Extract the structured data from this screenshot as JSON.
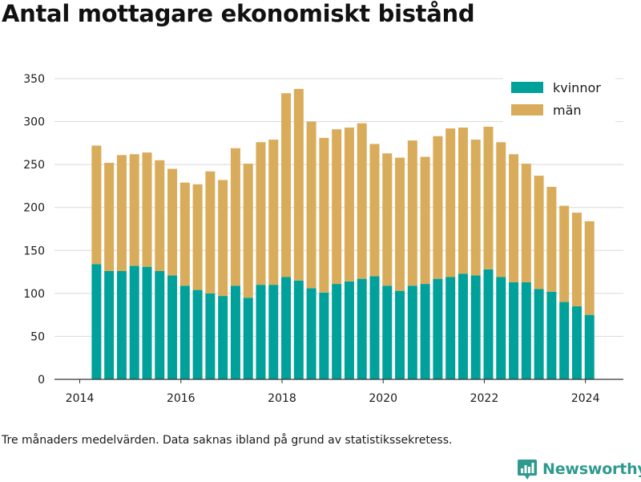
{
  "title": "Antal mottagare ekonomiskt bistånd",
  "footnote": "Tre månaders medelvärden. Data saknas ibland på grund av statistikssekretess.",
  "brand": {
    "name": "Newsworthy",
    "icon": "newsworthy-logo-icon",
    "color": "#2e9a8e"
  },
  "colors": {
    "kvinnor": "#00a19a",
    "man": "#d9ac5b",
    "grid": "#d9d9d9",
    "axis": "#333333"
  },
  "chart_data": {
    "type": "bar",
    "stacked": true,
    "title": "Antal mottagare ekonomiskt bistånd",
    "xlabel": "",
    "ylabel": "",
    "ylim": [
      0,
      350
    ],
    "yticks": [
      0,
      50,
      100,
      150,
      200,
      250,
      300,
      350
    ],
    "xlim": [
      2013.5,
      2024.75
    ],
    "xticks": [
      2014,
      2016,
      2018,
      2020,
      2022,
      2024
    ],
    "xtick_labels": [
      "2014",
      "2016",
      "2018",
      "2020",
      "2022",
      "2024"
    ],
    "grid": true,
    "legend": {
      "position": "top-right",
      "entries": [
        "kvinnor",
        "män"
      ]
    },
    "x": [
      2014.33,
      2014.58,
      2014.83,
      2015.08,
      2015.33,
      2015.58,
      2015.83,
      2016.08,
      2016.33,
      2016.58,
      2016.83,
      2017.08,
      2017.33,
      2017.58,
      2017.83,
      2018.08,
      2018.33,
      2018.58,
      2018.83,
      2019.08,
      2019.33,
      2019.58,
      2019.83,
      2020.08,
      2020.33,
      2020.58,
      2020.83,
      2021.08,
      2021.33,
      2021.58,
      2021.83,
      2022.08,
      2022.33,
      2022.58,
      2022.83,
      2023.08,
      2023.33,
      2023.58,
      2023.83,
      2024.08
    ],
    "series": [
      {
        "name": "kvinnor",
        "color": "#00a19a",
        "values": [
          134,
          126,
          126,
          132,
          131,
          126,
          121,
          109,
          104,
          100,
          97,
          109,
          95,
          110,
          110,
          119,
          115,
          106,
          101,
          111,
          114,
          117,
          120,
          109,
          103,
          109,
          111,
          117,
          119,
          123,
          121,
          128,
          119,
          113,
          113,
          105,
          102,
          90,
          85,
          75
        ]
      },
      {
        "name": "män",
        "color": "#d9ac5b",
        "values": [
          138,
          126,
          135,
          130,
          133,
          129,
          124,
          120,
          123,
          142,
          135,
          160,
          156,
          166,
          169,
          214,
          223,
          194,
          180,
          180,
          179,
          181,
          154,
          154,
          155,
          169,
          148,
          166,
          173,
          170,
          158,
          166,
          157,
          149,
          138,
          132,
          122,
          112,
          109,
          109
        ]
      }
    ]
  }
}
